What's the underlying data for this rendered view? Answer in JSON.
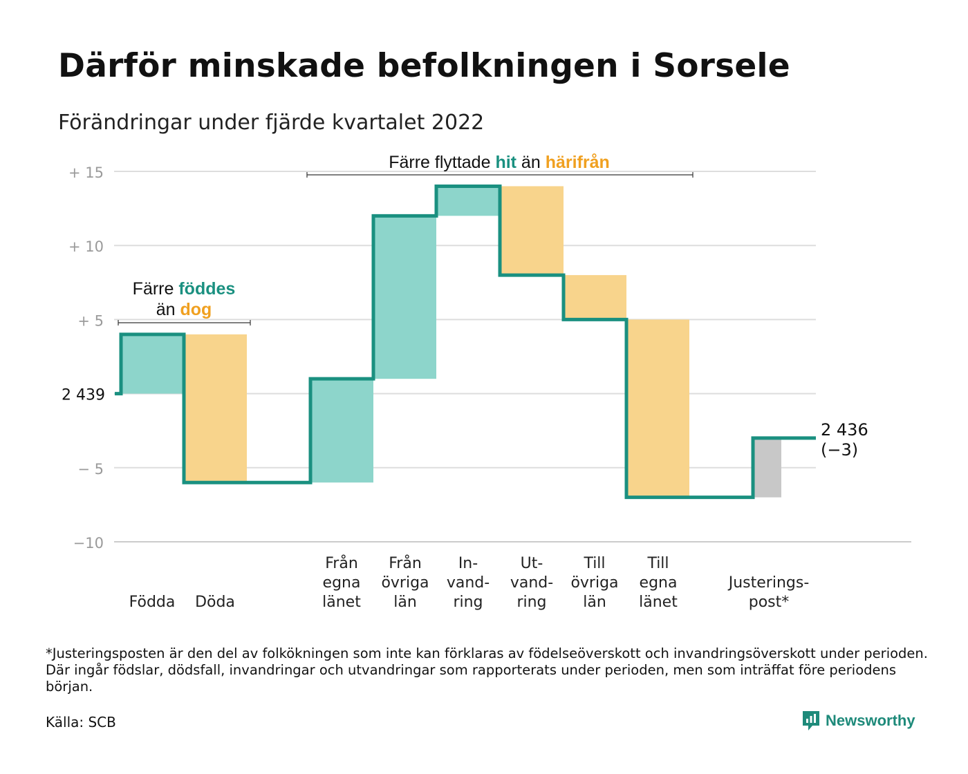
{
  "title": "Därför minskade befolkningen i Sorsele",
  "subtitle": "Förändringar under fjärde kvartalet 2022",
  "colors": {
    "line": "#1a9080",
    "inflow": "#8dd5cb",
    "outflow": "#f8d48c",
    "adjustment": "#c8c8c8",
    "accent_teal": "#1a9080",
    "accent_orange": "#f0a020",
    "grid": "#dddddd",
    "tick_text": "#9a9a9a"
  },
  "annotations": {
    "births_parts": [
      "Färre ",
      "föddes",
      "än ",
      "dog"
    ],
    "migration_parts": [
      "Färre flyttade ",
      "hit",
      " än ",
      "härifrån"
    ]
  },
  "chart_data": {
    "type": "waterfall",
    "ylim": [
      -10,
      15
    ],
    "yticks": [
      15,
      10,
      5,
      0,
      -5,
      -10
    ],
    "ytick_labels": [
      "+ 15",
      "+ 10",
      "+ 5",
      "2 439",
      "− 5",
      "−10"
    ],
    "start_value": 2439,
    "steps": [
      {
        "label": "Födda",
        "change": 4,
        "kind": "inflow"
      },
      {
        "label": "Döda",
        "change": -10,
        "kind": "outflow"
      },
      {
        "label": "Från egna länet",
        "change": 7,
        "kind": "inflow"
      },
      {
        "label": "Från övriga län",
        "change": 11,
        "kind": "inflow"
      },
      {
        "label": "In-vand-ring",
        "change": 2,
        "kind": "inflow"
      },
      {
        "label": "Ut-vand-ring",
        "change": -6,
        "kind": "outflow"
      },
      {
        "label": "Till övriga län",
        "change": -3,
        "kind": "outflow"
      },
      {
        "label": "Till egna länet",
        "change": -12,
        "kind": "outflow"
      },
      {
        "label": "Justerings-post*",
        "change": 4,
        "kind": "adjustment"
      }
    ],
    "category_labels": [
      [
        "Födda"
      ],
      [
        "Döda"
      ],
      [
        "Från",
        "egna",
        "länet"
      ],
      [
        "Från",
        "övriga",
        "län"
      ],
      [
        "In-",
        "vand-",
        "ring"
      ],
      [
        "Ut-",
        "vand-",
        "ring"
      ],
      [
        "Till",
        "övriga",
        "län"
      ],
      [
        "Till",
        "egna",
        "länet"
      ],
      [
        "Justerings-",
        "post*"
      ]
    ],
    "end_label_lines": [
      "2 436",
      "(−3)"
    ],
    "end_value": 2436,
    "net_change": -3
  },
  "footnote": "*Justeringsposten är den del av folkökningen som inte kan förklaras av födelseöverskott och invandringsöverskott under perioden. Där ingår födslar, dödsfall, invandringar och utvandringar som rapporterats under perioden, men som inträffat före periodens början.",
  "source": "Källa: SCB",
  "brand": "Newsworthy"
}
